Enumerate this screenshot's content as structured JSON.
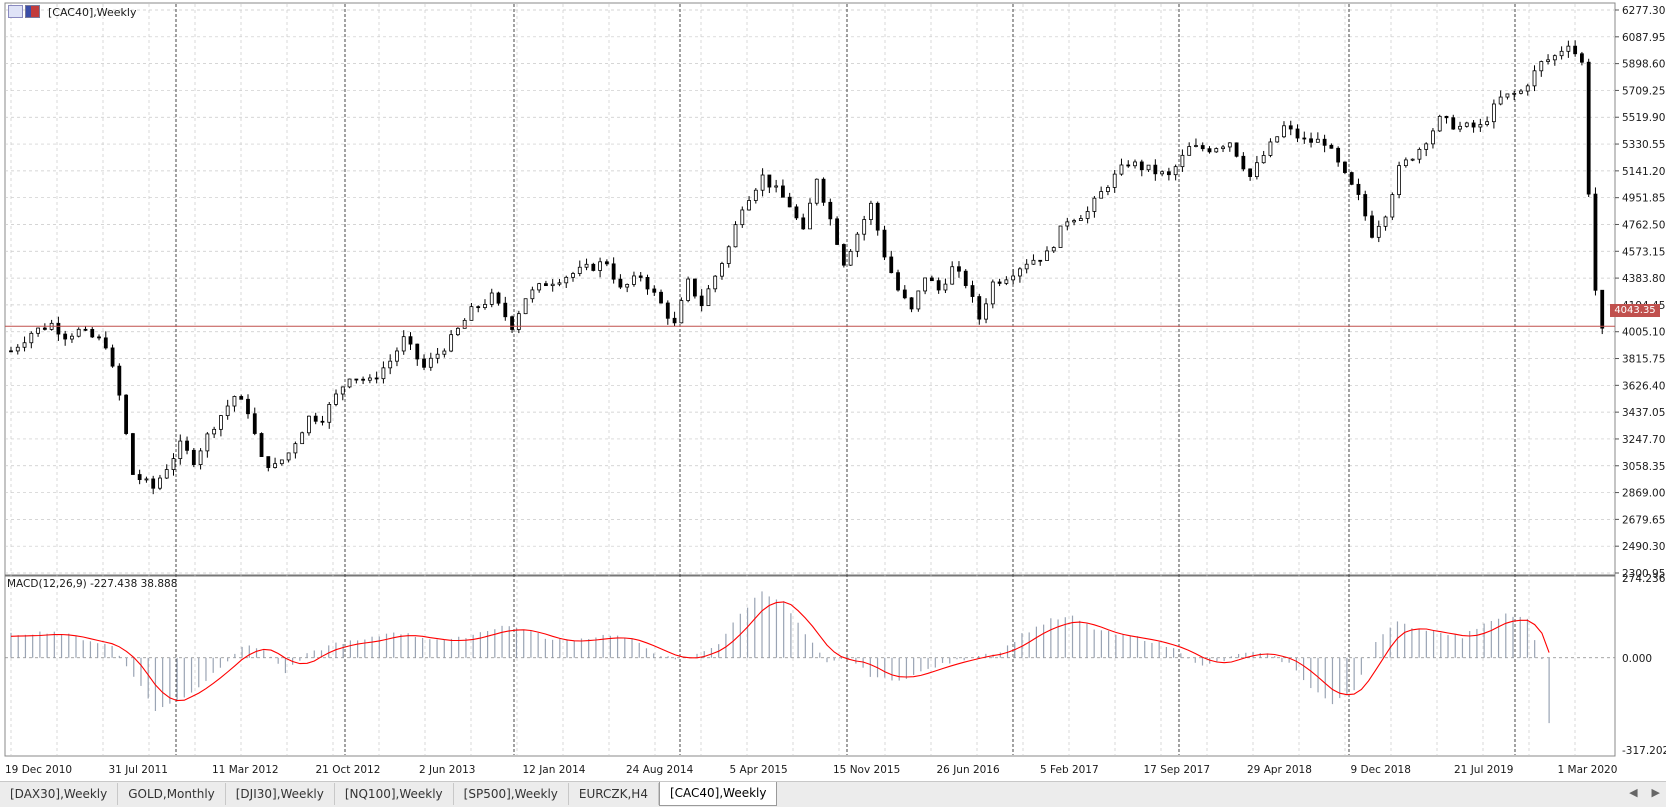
{
  "chart": {
    "title": "[CAC40],Weekly",
    "macd_label": "MACD(12,26,9) -227.438 38.888",
    "current_price": "4043.35",
    "y_ticks": [
      "6277.30",
      "6087.95",
      "5898.60",
      "5709.25",
      "5519.90",
      "5330.55",
      "5141.20",
      "4951.85",
      "4762.50",
      "4573.15",
      "4383.80",
      "4194.45",
      "4005.10",
      "3815.75",
      "3626.40",
      "3437.05",
      "3247.70",
      "3058.35",
      "2869.00",
      "2679.65",
      "2490.30",
      "2300.95"
    ],
    "macd_ticks": [
      "274.236",
      "0.000",
      "-317.202"
    ],
    "x_ticks": [
      "19 Dec 2010",
      "31 Jul 2011",
      "11 Mar 2012",
      "21 Oct 2012",
      "2 Jun 2013",
      "12 Jan 2014",
      "24 Aug 2014",
      "5 Apr 2015",
      "15 Nov 2015",
      "26 Jun 2016",
      "5 Feb 2017",
      "17 Sep 2017",
      "29 Apr 2018",
      "9 Dec 2018",
      "21 Jul 2019",
      "1 Mar 2020"
    ],
    "colors": {
      "price_line": "#c0504d",
      "signal_line": "#ff0000",
      "histogram": "#9aa4b4",
      "candles": "#000000",
      "grid": "#c8c8c8"
    }
  },
  "chart_data": {
    "type": "line",
    "title": "[CAC40],Weekly",
    "x": [
      "19 Dec 2010",
      "31 Jul 2011",
      "11 Mar 2012",
      "21 Oct 2012",
      "2 Jun 2013",
      "12 Jan 2014",
      "24 Aug 2014",
      "5 Apr 2015",
      "15 Nov 2015",
      "26 Jun 2016",
      "5 Feb 2017",
      "17 Sep 2017",
      "29 Apr 2018",
      "9 Dec 2018",
      "21 Jul 2019",
      "1 Mar 2020"
    ],
    "series": [
      {
        "values": [
          3900,
          3000,
          3300,
          3500,
          3900,
          4250,
          4300,
          5000,
          4300,
          4400,
          4900,
          5300,
          5450,
          4950,
          5550,
          4200
        ]
      }
    ],
    "ylim": [
      2300.95,
      6277.3
    ],
    "price_path": [
      [
        0,
        3870
      ],
      [
        3,
        4000
      ],
      [
        6,
        4060
      ],
      [
        8,
        3980
      ],
      [
        10,
        4010
      ],
      [
        14,
        3920
      ],
      [
        16,
        3550
      ],
      [
        18,
        3000
      ],
      [
        21,
        2900
      ],
      [
        23,
        3050
      ],
      [
        25,
        3200
      ],
      [
        27,
        3100
      ],
      [
        30,
        3350
      ],
      [
        33,
        3550
      ],
      [
        35,
        3450
      ],
      [
        37,
        3100
      ],
      [
        39,
        3050
      ],
      [
        41,
        3150
      ],
      [
        44,
        3400
      ],
      [
        46,
        3400
      ],
      [
        48,
        3550
      ],
      [
        50,
        3700
      ],
      [
        53,
        3650
      ],
      [
        56,
        3800
      ],
      [
        58,
        3950
      ],
      [
        61,
        3750
      ],
      [
        63,
        3850
      ],
      [
        65,
        3950
      ],
      [
        68,
        4150
      ],
      [
        71,
        4250
      ],
      [
        74,
        4050
      ],
      [
        76,
        4250
      ],
      [
        79,
        4350
      ],
      [
        82,
        4400
      ],
      [
        85,
        4450
      ],
      [
        88,
        4500
      ],
      [
        90,
        4300
      ],
      [
        93,
        4400
      ],
      [
        96,
        4200
      ],
      [
        98,
        4050
      ],
      [
        100,
        4350
      ],
      [
        102,
        4200
      ],
      [
        104,
        4400
      ],
      [
        106,
        4600
      ],
      [
        108,
        4900
      ],
      [
        111,
        5100
      ],
      [
        113,
        5000
      ],
      [
        115,
        4900
      ],
      [
        117,
        4700
      ],
      [
        119,
        5100
      ],
      [
        121,
        4800
      ],
      [
        123,
        4500
      ],
      [
        125,
        4700
      ],
      [
        127,
        4900
      ],
      [
        129,
        4550
      ],
      [
        131,
        4300
      ],
      [
        133,
        4150
      ],
      [
        135,
        4400
      ],
      [
        137,
        4300
      ],
      [
        139,
        4450
      ],
      [
        141,
        4350
      ],
      [
        143,
        4100
      ],
      [
        145,
        4350
      ],
      [
        147,
        4400
      ],
      [
        150,
        4500
      ],
      [
        153,
        4550
      ],
      [
        156,
        4800
      ],
      [
        159,
        4850
      ],
      [
        162,
        5050
      ],
      [
        165,
        5200
      ],
      [
        168,
        5150
      ],
      [
        171,
        5100
      ],
      [
        174,
        5300
      ],
      [
        177,
        5300
      ],
      [
        180,
        5350
      ],
      [
        183,
        5100
      ],
      [
        185,
        5250
      ],
      [
        188,
        5450
      ],
      [
        191,
        5350
      ],
      [
        194,
        5350
      ],
      [
        197,
        5100
      ],
      [
        199,
        4950
      ],
      [
        201,
        4700
      ],
      [
        203,
        4850
      ],
      [
        205,
        5150
      ],
      [
        208,
        5300
      ],
      [
        211,
        5500
      ],
      [
        214,
        5450
      ],
      [
        217,
        5450
      ],
      [
        220,
        5650
      ],
      [
        223,
        5700
      ],
      [
        226,
        5900
      ],
      [
        228,
        5950
      ],
      [
        230,
        6050
      ],
      [
        232,
        5900
      ],
      [
        233,
        5000
      ],
      [
        234,
        4300
      ],
      [
        235,
        4000
      ]
    ],
    "macd_ylim": [
      -317.202,
      274.236
    ],
    "macd_path": [
      [
        0,
        80
      ],
      [
        6,
        90
      ],
      [
        14,
        40
      ],
      [
        17,
        -60
      ],
      [
        20,
        -180
      ],
      [
        23,
        -150
      ],
      [
        26,
        -100
      ],
      [
        29,
        -30
      ],
      [
        32,
        40
      ],
      [
        35,
        30
      ],
      [
        38,
        -50
      ],
      [
        41,
        10
      ],
      [
        45,
        50
      ],
      [
        49,
        60
      ],
      [
        53,
        90
      ],
      [
        57,
        70
      ],
      [
        61,
        60
      ],
      [
        64,
        80
      ],
      [
        68,
        110
      ],
      [
        71,
        100
      ],
      [
        75,
        60
      ],
      [
        79,
        65
      ],
      [
        83,
        80
      ],
      [
        86,
        60
      ],
      [
        89,
        20
      ],
      [
        92,
        -10
      ],
      [
        95,
        10
      ],
      [
        98,
        50
      ],
      [
        101,
        150
      ],
      [
        104,
        230
      ],
      [
        107,
        190
      ],
      [
        110,
        80
      ],
      [
        113,
        -20
      ],
      [
        116,
        0
      ],
      [
        119,
        -60
      ],
      [
        122,
        -80
      ],
      [
        125,
        -60
      ],
      [
        128,
        -30
      ],
      [
        131,
        -10
      ],
      [
        134,
        10
      ],
      [
        137,
        20
      ],
      [
        140,
        80
      ],
      [
        144,
        130
      ],
      [
        147,
        140
      ],
      [
        150,
        100
      ],
      [
        153,
        80
      ],
      [
        156,
        70
      ],
      [
        159,
        50
      ],
      [
        162,
        20
      ],
      [
        165,
        -30
      ],
      [
        168,
        -10
      ],
      [
        171,
        20
      ],
      [
        174,
        10
      ],
      [
        177,
        -20
      ],
      [
        180,
        -100
      ],
      [
        183,
        -160
      ],
      [
        186,
        -110
      ],
      [
        189,
        60
      ],
      [
        192,
        120
      ],
      [
        195,
        100
      ],
      [
        198,
        90
      ],
      [
        201,
        70
      ],
      [
        204,
        120
      ],
      [
        207,
        150
      ],
      [
        210,
        130
      ],
      [
        212,
        -10
      ],
      [
        213,
        -220
      ]
    ]
  },
  "tabs": [
    {
      "label": "[DAX30],Weekly",
      "active": false
    },
    {
      "label": "GOLD,Monthly",
      "active": false
    },
    {
      "label": "[DJI30],Weekly",
      "active": false
    },
    {
      "label": "[NQ100],Weekly",
      "active": false
    },
    {
      "label": "[SP500],Weekly",
      "active": false
    },
    {
      "label": "EURCZK,H4",
      "active": false
    },
    {
      "label": "[CAC40],Weekly",
      "active": true
    }
  ],
  "tab_scroll": {
    "left": "◀",
    "right": "▶"
  }
}
